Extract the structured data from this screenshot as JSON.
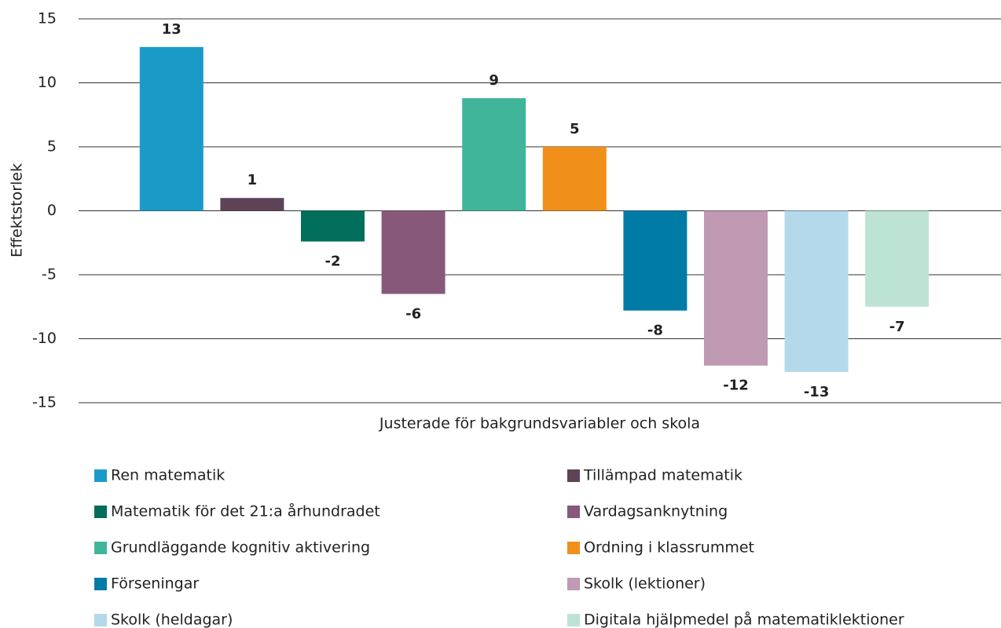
{
  "chart_data": {
    "type": "bar",
    "y_label": "Effektstorlek",
    "categories": [
      "Justerade för bakgrundsvariabler och skola"
    ],
    "ylim": [
      -15,
      15
    ],
    "yticks": [
      -15,
      -10,
      -5,
      0,
      5,
      10,
      15
    ],
    "grid": true,
    "series": [
      {
        "name": "Ren matematik",
        "color": "#1a9bc7",
        "values": [
          12.8
        ],
        "value_labels": [
          "13"
        ]
      },
      {
        "name": "Tillämpad matematik",
        "color": "#5e4356",
        "values": [
          1
        ],
        "value_labels": [
          "1"
        ]
      },
      {
        "name": "Matematik för det 21:a århundradet",
        "color": "#006e5b",
        "values": [
          -2.4
        ],
        "value_labels": [
          "-2"
        ]
      },
      {
        "name": "Vardagsanknytning",
        "color": "#87587a",
        "values": [
          -6.5
        ],
        "value_labels": [
          "-6"
        ]
      },
      {
        "name": "Grundläggande kognitiv aktivering",
        "color": "#40b599",
        "values": [
          8.8
        ],
        "value_labels": [
          "9"
        ]
      },
      {
        "name": "Ordning i klassrummet",
        "color": "#f0901a",
        "values": [
          5
        ],
        "value_labels": [
          "5"
        ]
      },
      {
        "name": "Förseningar",
        "color": "#007ba6",
        "values": [
          -7.8
        ],
        "value_labels": [
          "-8"
        ]
      },
      {
        "name": "Skolk (lektioner)",
        "color": "#bf9ab2",
        "values": [
          -12.1
        ],
        "value_labels": [
          "-12"
        ]
      },
      {
        "name": "Skolk (heldagar)",
        "color": "#b4d9ea",
        "values": [
          -12.6
        ],
        "value_labels": [
          "-13"
        ]
      },
      {
        "name": "Digitala hjälpmedel på matematiklektioner",
        "color": "#bde3d5",
        "values": [
          -7.5
        ],
        "value_labels": [
          "-7"
        ]
      }
    ]
  }
}
